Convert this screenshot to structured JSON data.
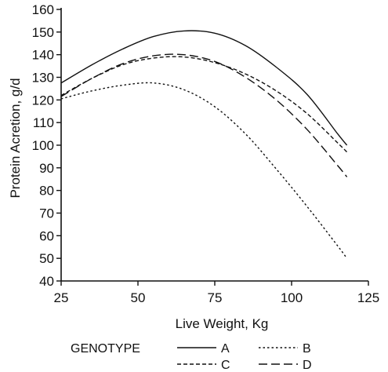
{
  "chart_data": {
    "type": "line",
    "title": "",
    "xlabel": "Live Weight, Kg",
    "ylabel": "Protein Acretion, g/d",
    "xlim": [
      25,
      125
    ],
    "ylim": [
      40,
      160
    ],
    "xticks": [
      25,
      50,
      75,
      100,
      125
    ],
    "yticks": [
      40,
      50,
      60,
      70,
      80,
      90,
      100,
      110,
      120,
      130,
      140,
      150,
      160
    ],
    "x": [
      25,
      35,
      45,
      55,
      65,
      75,
      85,
      95,
      105,
      115,
      118
    ],
    "series": [
      {
        "name": "A",
        "dash": "solid",
        "values": [
          127.5,
          135.5,
          142.5,
          148,
          150.5,
          149.5,
          144,
          134.5,
          122.5,
          105,
          100
        ]
      },
      {
        "name": "B",
        "dash": "dotted",
        "values": [
          120.5,
          124,
          126.5,
          127.5,
          124.5,
          117,
          105,
          89.5,
          73,
          55.5,
          50
        ]
      },
      {
        "name": "C",
        "dash": "short-dash",
        "values": [
          122,
          129.5,
          135.5,
          138.5,
          139,
          136.5,
          131.5,
          124,
          114,
          101,
          97
        ]
      },
      {
        "name": "D",
        "dash": "long-dash",
        "values": [
          121.5,
          129.5,
          136,
          139.5,
          140,
          137,
          130,
          120,
          107,
          91,
          86
        ]
      }
    ],
    "grid": false,
    "legend": {
      "title": "GENOTYPE",
      "position": "bottom"
    }
  }
}
